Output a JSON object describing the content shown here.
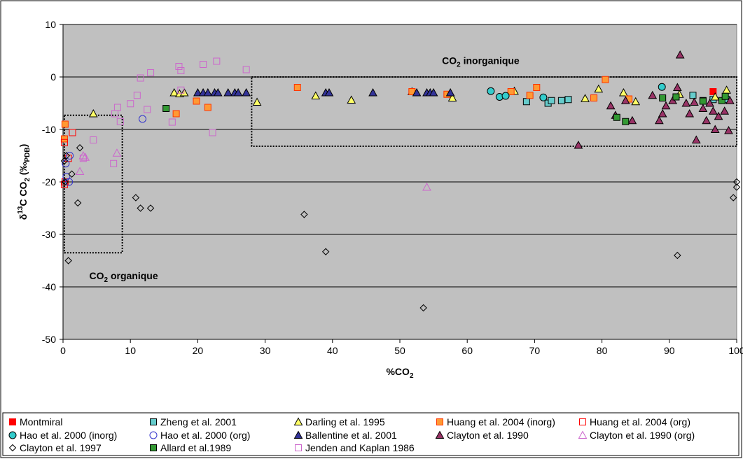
{
  "chart_data": {
    "type": "scatter",
    "x_label": [
      "%CO",
      "2"
    ],
    "y_label": [
      "δ",
      "13",
      "C CO",
      "2",
      " (‰",
      "PDB",
      ")"
    ],
    "xlim": [
      0,
      100
    ],
    "xticks": [
      0,
      10,
      20,
      30,
      40,
      50,
      60,
      70,
      80,
      90,
      100
    ],
    "ylim": [
      -50,
      10
    ],
    "yticks": [
      -50,
      -40,
      -30,
      -20,
      -10,
      0,
      10
    ],
    "grid": true,
    "background": "#c0c0c0",
    "legend": "bottom",
    "annotations": [
      {
        "text": [
          "CO",
          "2",
          " inorganique"
        ],
        "x": 62,
        "y": 2.5,
        "box": {
          "xlim": [
            28,
            100
          ],
          "ylim": [
            -13.2,
            0
          ]
        }
      },
      {
        "text": [
          "CO",
          "2",
          " organique"
        ],
        "x": 9,
        "y": -38.5,
        "box": {
          "xlim": [
            0.2,
            8.8
          ],
          "ylim": [
            -33.5,
            -7.3
          ]
        }
      }
    ],
    "series": [
      {
        "name": "Montmiral",
        "marker": "square",
        "color": "#ff0000",
        "edgecolor": "#ff0000",
        "filled": true,
        "x": [
          96.5
        ],
        "values": [
          -2.8
        ]
      },
      {
        "name": "Zheng et al. 2001",
        "marker": "square",
        "color": "#66cccc",
        "edgecolor": "#000000",
        "filled": true,
        "x": [
          68.8,
          72,
          72.5,
          74,
          75,
          93.5,
          95,
          96.5,
          98.5
        ],
        "values": [
          -4.7,
          -5,
          -4.5,
          -4.5,
          -4.3,
          -3.5,
          -4.5,
          -4.3,
          -4.3
        ]
      },
      {
        "name": "Darling et al. 1995",
        "marker": "triangle",
        "color": "#ffff66",
        "edgecolor": "#000000",
        "filled": true,
        "x": [
          4.5,
          16.5,
          17.3,
          18,
          28.8,
          37.5,
          42.8,
          51.8,
          57.8,
          67,
          77.5,
          79.5,
          83.2,
          85,
          91.5,
          96.8,
          98.5
        ],
        "values": [
          -7,
          -3,
          -3.2,
          -3,
          -4.8,
          -3.6,
          -4.4,
          -2.8,
          -4,
          -2.7,
          -4.1,
          -2.3,
          -3,
          -4.7,
          -3.3,
          -3.8,
          -2.5
        ]
      },
      {
        "name": "Huang et al. 2004 (inorg)",
        "marker": "square",
        "color": "#ff9933",
        "edgecolor": "#ff3300",
        "filled": true,
        "x": [
          0.3,
          0.2,
          16.8,
          19.8,
          21.5,
          34.8,
          51.8,
          57,
          66.5,
          69.3,
          70.3,
          78.8,
          80.5,
          84
        ],
        "values": [
          -9,
          -11.8,
          -7,
          -4.6,
          -5.8,
          -2,
          -2.8,
          -3.3,
          -2.8,
          -3.5,
          -2,
          -4,
          -0.5,
          -4.2
        ]
      },
      {
        "name": "Huang et al. 2004 (org)",
        "marker": "square",
        "color": "#ff0000",
        "edgecolor": "#ff0000",
        "filled": false,
        "x": [
          0.2,
          0.3,
          1.4,
          0.8,
          0.2
        ],
        "values": [
          -12.5,
          -20,
          -10.6,
          -15.5,
          -20.5
        ]
      },
      {
        "name": "Hao et al. 2000 (inorg)",
        "marker": "circle",
        "color": "#33cccc",
        "edgecolor": "#000000",
        "filled": true,
        "x": [
          63.5,
          64.8,
          65.7,
          71.3,
          88.9
        ],
        "values": [
          -2.7,
          -3.8,
          -3.6,
          -3.9,
          -1.9
        ]
      },
      {
        "name": "Hao et al. 2000 (org)",
        "marker": "circle",
        "color": "#3333cc",
        "edgecolor": "#3333cc",
        "filled": false,
        "x": [
          11.8,
          0.5,
          0.9,
          0.4,
          1
        ],
        "values": [
          -8,
          -19,
          -20,
          -16.5,
          -15
        ]
      },
      {
        "name": "Ballentine et al. 2001",
        "marker": "triangle",
        "color": "#333399",
        "edgecolor": "#000000",
        "filled": true,
        "x": [
          20,
          20.8,
          21.5,
          22.5,
          23,
          24.5,
          25.5,
          26,
          27.2,
          39,
          39.5,
          46,
          52.5,
          54,
          54.5,
          55,
          57.5
        ],
        "values": [
          -3,
          -3,
          -3,
          -3,
          -3,
          -3,
          -3,
          -3,
          -3,
          -3,
          -3,
          -3,
          -3,
          -3,
          -3,
          -3,
          -3
        ]
      },
      {
        "name": "Clayton et al. 1990",
        "marker": "triangle",
        "color": "#993366",
        "edgecolor": "#000000",
        "filled": true,
        "x": [
          76.5,
          81.3,
          82,
          83.5,
          84.5,
          87.5,
          88.5,
          89,
          89.5,
          90.5,
          91.2,
          91.6,
          92.5,
          93,
          93.7,
          94,
          95,
          95.5,
          96,
          96.5,
          96.8,
          97.3,
          98.2,
          98.8,
          99
        ],
        "values": [
          -13,
          -5.5,
          -7.3,
          -4.5,
          -8.3,
          -3.5,
          -8.3,
          -7,
          -5.5,
          -4.5,
          -2,
          4.2,
          -5,
          -7,
          -4.8,
          -12,
          -6,
          -8.3,
          -5,
          -6.5,
          -10,
          -7.5,
          -6.5,
          -10.2,
          -4.5
        ]
      },
      {
        "name": "Clayton et al. 1990 (org)",
        "marker": "triangle",
        "color": "#cc66cc",
        "edgecolor": "#cc66cc",
        "filled": false,
        "x": [
          2.5,
          3,
          3.3,
          8,
          54
        ],
        "values": [
          -18,
          -15,
          -15.3,
          -14.5,
          -21
        ]
      },
      {
        "name": "Clayton et al. 1997",
        "marker": "diamond",
        "color": "#000000",
        "edgecolor": "#000000",
        "filled": false,
        "x": [
          0.3,
          0.8,
          0.5,
          0.2,
          1.3,
          2.2,
          2.5,
          10.8,
          11.5,
          13,
          35.8,
          39,
          53.5,
          91.2,
          99.5,
          100,
          100
        ],
        "values": [
          -20,
          -35,
          -15,
          -16,
          -18.5,
          -24,
          -13.5,
          -23,
          -25,
          -25,
          -26.2,
          -33.3,
          -44,
          -34,
          -23,
          -20,
          -21
        ]
      },
      {
        "name": "Allard et al.1989",
        "marker": "square",
        "color": "#339933",
        "edgecolor": "#000000",
        "filled": true,
        "x": [
          15.3,
          82.2,
          83.5,
          89,
          91,
          95,
          97.8,
          98.3
        ],
        "values": [
          -6,
          -7.7,
          -8.5,
          -4,
          -3.8,
          -4.6,
          -4.5,
          -3.7
        ]
      },
      {
        "name": "Jenden and Kaplan 1986",
        "marker": "square",
        "color": "#cc66cc",
        "edgecolor": "#cc66cc",
        "filled": false,
        "x": [
          3,
          4.5,
          7.5,
          7.7,
          8.1,
          8.5,
          10,
          11,
          11.5,
          12.5,
          13,
          16.2,
          17.2,
          17.5,
          17.5,
          20.8,
          22.2,
          22.8,
          27.2
        ],
        "values": [
          -15.5,
          -12,
          -16.5,
          -7,
          -5.8,
          -8.5,
          -5.1,
          -3.5,
          -0.2,
          -6.2,
          0.8,
          -8.6,
          2,
          1.2,
          -2.5,
          2.4,
          -10.6,
          3,
          1.4
        ]
      }
    ]
  }
}
